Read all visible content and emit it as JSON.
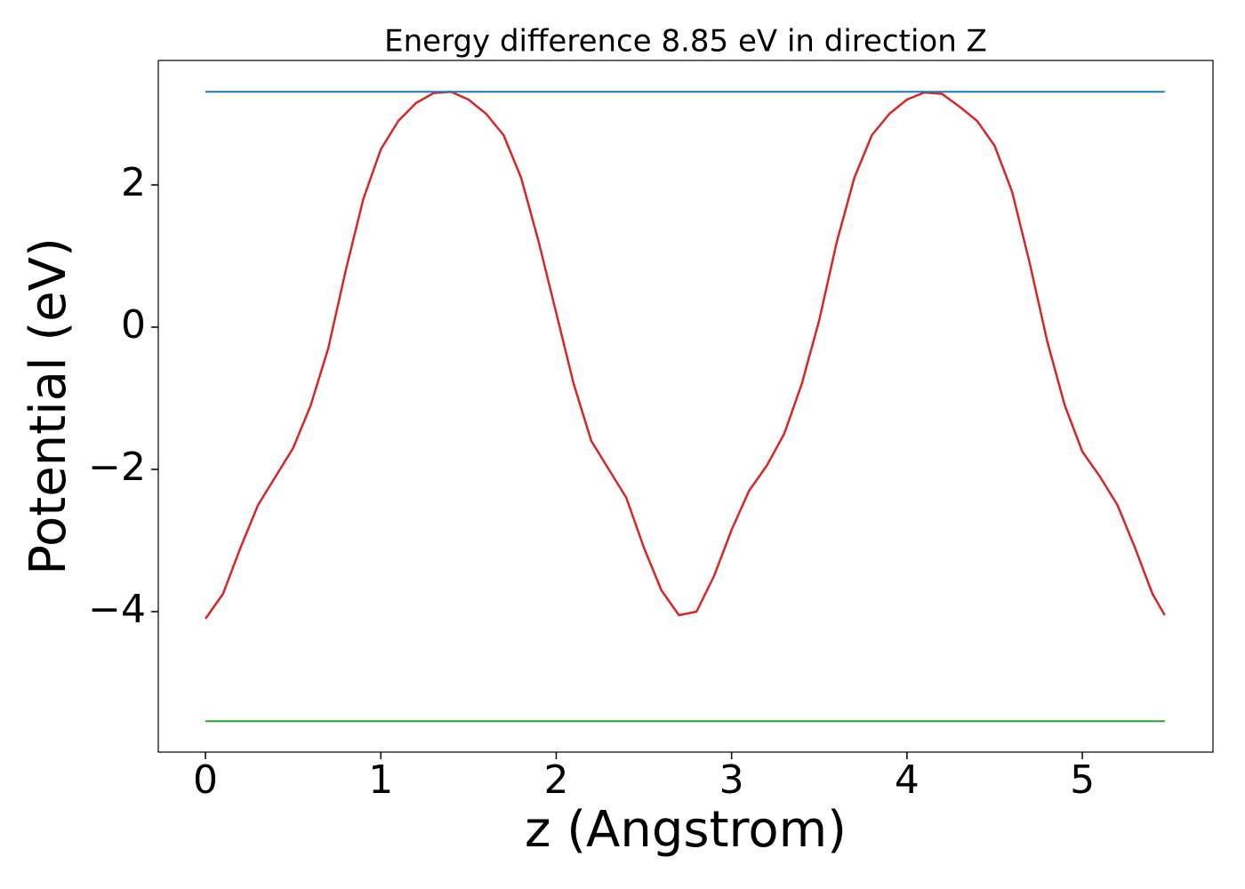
{
  "chart_data": {
    "type": "line",
    "title": "Energy difference 8.85 eV in direction Z",
    "xlabel": "z (Angstrom)",
    "ylabel": "Potential (eV)",
    "xlim": [
      -0.269,
      5.745
    ],
    "ylim": [
      -5.975,
      3.75
    ],
    "xticks": [
      0,
      1,
      2,
      3,
      4,
      5
    ],
    "yticks": [
      {
        "value": -4,
        "label": "−4"
      },
      {
        "value": -2,
        "label": "−2"
      },
      0,
      2
    ],
    "grid": false,
    "series": [
      {
        "color": "#d62728",
        "x": [
          0,
          0.1,
          0.2,
          0.3,
          0.4,
          0.5,
          0.6,
          0.7,
          0.8,
          0.9,
          1.0,
          1.1,
          1.2,
          1.3,
          1.4,
          1.5,
          1.6,
          1.7,
          1.8,
          1.9,
          2.0,
          2.1,
          2.2,
          2.3,
          2.4,
          2.5,
          2.6,
          2.7,
          2.8,
          2.9,
          3.0,
          3.1,
          3.2,
          3.3,
          3.4,
          3.5,
          3.6,
          3.7,
          3.8,
          3.9,
          4.0,
          4.1,
          4.2,
          4.3,
          4.4,
          4.5,
          4.6,
          4.7,
          4.8,
          4.9,
          5.0,
          5.1,
          5.2,
          5.3,
          5.4,
          5.47
        ],
        "values": [
          -4.1,
          -3.75,
          -3.1,
          -2.5,
          -2.1,
          -1.7,
          -1.1,
          -0.3,
          0.8,
          1.8,
          2.5,
          2.9,
          3.15,
          3.29,
          3.31,
          3.2,
          3.0,
          2.7,
          2.1,
          1.2,
          0.2,
          -0.8,
          -1.6,
          -2.0,
          -2.4,
          -3.1,
          -3.7,
          -4.05,
          -4.0,
          -3.5,
          -2.85,
          -2.3,
          -1.95,
          -1.5,
          -0.8,
          0.1,
          1.2,
          2.1,
          2.7,
          3.0,
          3.2,
          3.3,
          3.28,
          3.1,
          2.9,
          2.55,
          1.9,
          0.9,
          -0.2,
          -1.1,
          -1.75,
          -2.1,
          -2.5,
          -3.1,
          -3.75,
          -4.05
        ]
      },
      {
        "color": "#1f77b4",
        "x": [
          0,
          5.47
        ],
        "values": [
          3.31,
          3.31
        ]
      },
      {
        "color": "#2ca02c",
        "x": [
          0,
          5.47
        ],
        "values": [
          -5.54,
          -5.54
        ]
      }
    ]
  }
}
